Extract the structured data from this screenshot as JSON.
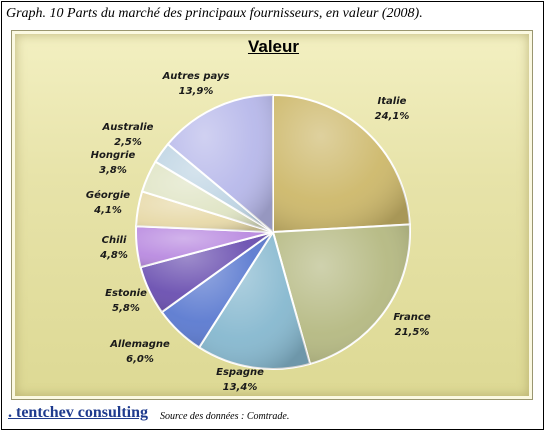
{
  "caption": "Graph. 10 Parts du marché des principaux fournisseurs,  en valeur (2008).",
  "footer": {
    "brand": ". tentchev consulting",
    "source": "Source des données : Comtrade."
  },
  "chart_data": {
    "type": "pie",
    "title": "Valeur",
    "slices": [
      {
        "label": "Italie",
        "value_text": "24,1%",
        "value": 24.1,
        "color": "#cdb86a"
      },
      {
        "label": "France",
        "value_text": "21,5%",
        "value": 21.5,
        "color": "#b5b982"
      },
      {
        "label": "Espagne",
        "value_text": "13,4%",
        "value": 13.4,
        "color": "#86b8cf"
      },
      {
        "label": "Allemagne",
        "value_text": "6,0%",
        "value": 6.0,
        "color": "#5b7ad0"
      },
      {
        "label": "Estonie",
        "value_text": "5,8%",
        "value": 5.8,
        "color": "#6a4fb0"
      },
      {
        "label": "Chili",
        "value_text": "4,8%",
        "value": 4.8,
        "color": "#b98ae0"
      },
      {
        "label": "Géorgie",
        "value_text": "4,1%",
        "value": 4.1,
        "color": "#e7d9a8"
      },
      {
        "label": "Hongrie",
        "value_text": "3,8%",
        "value": 3.8,
        "color": "#dfe4c4"
      },
      {
        "label": "Australie",
        "value_text": "2,5%",
        "value": 2.5,
        "color": "#bed4e3"
      },
      {
        "label": "Autres pays",
        "value_text": "13,9%",
        "value": 13.9,
        "color": "#b7b8ea"
      }
    ]
  }
}
